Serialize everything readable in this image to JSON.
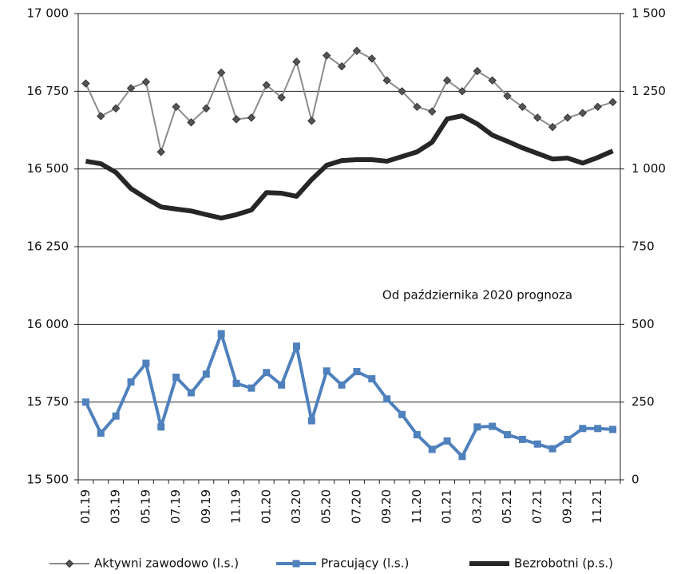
{
  "chart_data": {
    "type": "line",
    "annotation": "Od października 2020 prognoza",
    "categories": [
      "01.19",
      null,
      "03.19",
      null,
      "05.19",
      null,
      "07.19",
      null,
      "09.19",
      null,
      "11.19",
      null,
      "01.20",
      null,
      "03.20",
      null,
      "05.20",
      null,
      "07.20",
      null,
      "09.20",
      null,
      "11.20",
      null,
      "01.21",
      null,
      "03.21",
      null,
      "05.21",
      null,
      "07.21",
      null,
      "09.21",
      null,
      "11.21",
      null
    ],
    "ylim": [
      15500,
      17000
    ],
    "yticks": [
      {
        "value": 15500,
        "label": "15 500"
      },
      {
        "value": 15750,
        "label": "15 750"
      },
      {
        "value": 16000,
        "label": "16 000"
      },
      {
        "value": 16250,
        "label": "16 250"
      },
      {
        "value": 16500,
        "label": "16 500"
      },
      {
        "value": 16750,
        "label": "16 750"
      },
      {
        "value": 17000,
        "label": "17 000"
      }
    ],
    "y2lim": [
      0,
      1500
    ],
    "y2ticks": [
      0,
      250,
      500,
      750,
      {
        "value": 1000,
        "label": "1 000"
      },
      {
        "value": 1250,
        "label": "1 250"
      },
      {
        "value": 1500,
        "label": "1 500"
      }
    ],
    "grid": true,
    "series": [
      {
        "name": "Aktywni zawodowo (l.s.)",
        "color": "#8c8c8c",
        "marker": "diamond",
        "values": [
          16775,
          16670,
          16695,
          16760,
          16780,
          16555,
          16700,
          16650,
          16695,
          16810,
          16660,
          16665,
          16770,
          16730,
          16845,
          16655,
          16865,
          16830,
          16880,
          16855,
          16785,
          16750,
          16700,
          16685,
          16785,
          16750,
          16815,
          16785,
          16735,
          16700,
          16665,
          16635,
          16665,
          16680,
          16700,
          16715
        ]
      },
      {
        "name": "Pracujący (l.s.)",
        "color": "#4f81bd",
        "marker": "square",
        "values": [
          15750,
          15650,
          15705,
          15815,
          15875,
          15670,
          15830,
          15780,
          15840,
          15970,
          15810,
          15795,
          15845,
          15805,
          15930,
          15690,
          15850,
          15805,
          15848,
          15825,
          15760,
          15710,
          15645,
          15598,
          15625,
          15575,
          15670,
          15672,
          15645,
          15630,
          15615,
          15600,
          15630,
          15665,
          15665,
          15662
        ]
      },
      {
        "name": "Bezrobotni (p.s.)",
        "color": "#262626",
        "axis": "y2",
        "values": [
          1025,
          1017,
          989,
          937,
          906,
          878,
          871,
          865,
          853,
          842,
          853,
          868,
          924,
          922,
          912,
          966,
          1012,
          1027,
          1030,
          1030,
          1025,
          1040,
          1055,
          1086,
          1161,
          1171,
          1145,
          1109,
          1089,
          1068,
          1050,
          1032,
          1035,
          1019,
          1037,
          1058
        ]
      }
    ]
  }
}
